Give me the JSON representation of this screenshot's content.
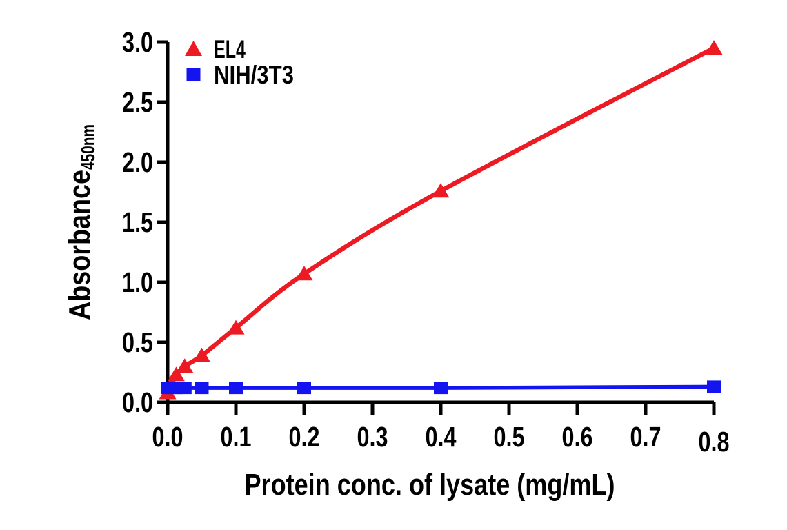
{
  "canvas": {
    "background": "#ffffff"
  },
  "chart_data": {
    "type": "scatter",
    "title": "",
    "xlabel": "Protein conc. of lysate (mg/mL)",
    "ylabel": "Absorbance",
    "ylabel_subscript": "450nm",
    "xlim": [
      0,
      0.8
    ],
    "ylim": [
      0,
      3.0
    ],
    "xticks": [
      "0.0",
      "0.1",
      "0.2",
      "0.3",
      "0.4",
      "0.5",
      "0.6",
      "0.7",
      "0.8"
    ],
    "yticks": [
      "0.0",
      "0.5",
      "1.0",
      "1.5",
      "2.0",
      "2.5",
      "3.0"
    ],
    "grid": false,
    "legend_position": "top-left-inside",
    "axis_color": "#000000",
    "series": [
      {
        "name": "EL4",
        "color": "#EC1B23",
        "marker": "triangle",
        "line": "smooth",
        "points": [
          [
            0,
            0.08
          ],
          [
            0.00625,
            0.15
          ],
          [
            0.0125,
            0.23
          ],
          [
            0.025,
            0.3
          ],
          [
            0.05,
            0.39
          ],
          [
            0.1,
            0.62
          ],
          [
            0.2,
            1.07
          ],
          [
            0.4,
            1.76
          ],
          [
            0.8,
            2.95
          ]
        ]
      },
      {
        "name": "NIH/3T3",
        "color": "#1414F0",
        "marker": "square",
        "line": "straight",
        "points": [
          [
            0,
            0.12
          ],
          [
            0.00625,
            0.12
          ],
          [
            0.0125,
            0.12
          ],
          [
            0.025,
            0.12
          ],
          [
            0.05,
            0.12
          ],
          [
            0.1,
            0.12
          ],
          [
            0.2,
            0.12
          ],
          [
            0.4,
            0.12
          ],
          [
            0.8,
            0.13
          ]
        ]
      }
    ]
  }
}
